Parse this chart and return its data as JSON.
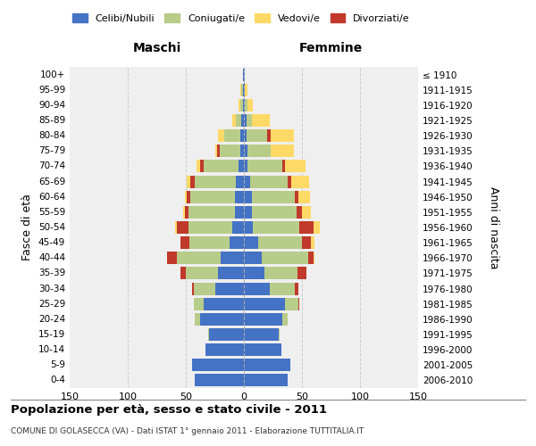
{
  "age_groups": [
    "0-4",
    "5-9",
    "10-14",
    "15-19",
    "20-24",
    "25-29",
    "30-34",
    "35-39",
    "40-44",
    "45-49",
    "50-54",
    "55-59",
    "60-64",
    "65-69",
    "70-74",
    "75-79",
    "80-84",
    "85-89",
    "90-94",
    "95-99",
    "100+"
  ],
  "birth_years": [
    "2006-2010",
    "2001-2005",
    "1996-2000",
    "1991-1995",
    "1986-1990",
    "1981-1985",
    "1976-1980",
    "1971-1975",
    "1966-1970",
    "1961-1965",
    "1956-1960",
    "1951-1955",
    "1946-1950",
    "1941-1945",
    "1936-1940",
    "1931-1935",
    "1926-1930",
    "1921-1925",
    "1916-1920",
    "1911-1915",
    "≤ 1910"
  ],
  "maschi": {
    "celibi": [
      42,
      45,
      33,
      30,
      38,
      35,
      25,
      22,
      20,
      12,
      10,
      8,
      8,
      7,
      5,
      3,
      3,
      2,
      1,
      1,
      1
    ],
    "coniugati": [
      0,
      0,
      0,
      1,
      4,
      8,
      18,
      28,
      38,
      35,
      38,
      40,
      38,
      35,
      30,
      18,
      14,
      5,
      2,
      1,
      0
    ],
    "vedovi": [
      0,
      0,
      0,
      0,
      0,
      0,
      0,
      0,
      0,
      0,
      1,
      1,
      2,
      3,
      3,
      2,
      5,
      3,
      2,
      1,
      0
    ],
    "divorziati": [
      0,
      0,
      0,
      0,
      0,
      0,
      2,
      5,
      8,
      8,
      10,
      3,
      3,
      4,
      3,
      2,
      0,
      0,
      0,
      0,
      0
    ]
  },
  "femmine": {
    "nubili": [
      38,
      40,
      32,
      30,
      33,
      35,
      22,
      18,
      15,
      12,
      8,
      7,
      7,
      5,
      3,
      3,
      2,
      2,
      1,
      1,
      1
    ],
    "coniugate": [
      0,
      0,
      0,
      1,
      5,
      12,
      22,
      28,
      40,
      38,
      40,
      38,
      37,
      33,
      30,
      20,
      18,
      5,
      2,
      0,
      0
    ],
    "vedove": [
      0,
      0,
      0,
      0,
      0,
      0,
      0,
      0,
      1,
      3,
      5,
      8,
      10,
      15,
      18,
      20,
      20,
      15,
      5,
      2,
      0
    ],
    "divorziate": [
      0,
      0,
      0,
      0,
      0,
      1,
      3,
      8,
      5,
      8,
      12,
      5,
      3,
      3,
      2,
      0,
      3,
      0,
      0,
      0,
      0
    ]
  },
  "colors": {
    "celibi": "#4472c4",
    "coniugati": "#b8cc8a",
    "vedovi": "#ffd966",
    "divorziati": "#c0392b"
  },
  "xlim": 150,
  "title": "Popolazione per età, sesso e stato civile - 2011",
  "subtitle": "COMUNE DI GOLASECCA (VA) - Dati ISTAT 1° gennaio 2011 - Elaborazione TUTTITALIA.IT",
  "xlabel_left": "Maschi",
  "xlabel_right": "Femmine",
  "ylabel_left": "Fasce di età",
  "ylabel_right": "Anni di nascita",
  "legend_labels": [
    "Celibi/Nubili",
    "Coniugati/e",
    "Vedovi/e",
    "Divorziati/e"
  ],
  "bg_color": "#efefef",
  "grid_color": "#cccccc"
}
